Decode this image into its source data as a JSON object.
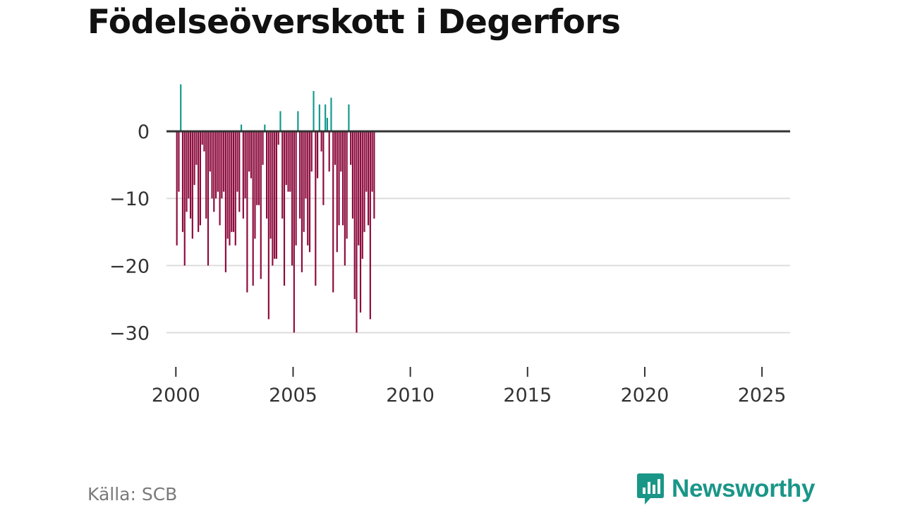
{
  "title": "Födelseöverskott i Degerfors",
  "source": "Källa: SCB",
  "brand": {
    "name": "Newsworthy",
    "icon": "bar-chart-speech-bubble-icon"
  },
  "colors": {
    "positive": "#11988c",
    "negative": "#8c0a3c",
    "zero_line": "#333333",
    "grid": "#dddddd",
    "brand": "#1a9688"
  },
  "chart_data": {
    "type": "bar",
    "title": "Födelseöverskott i Degerfors",
    "xlabel": "",
    "ylabel": "",
    "x_start": 2000,
    "months_per_bar": 1,
    "xlim": [
      1999.6,
      2026.2
    ],
    "ylim": [
      -33,
      8
    ],
    "yticks": [
      0,
      -10,
      -20,
      -30
    ],
    "ytick_labels": [
      "0",
      "−10",
      "−20",
      "−30"
    ],
    "xticks": [
      2000,
      2005,
      2010,
      2015,
      2020,
      2025
    ],
    "xtick_labels": [
      "2000",
      "2005",
      "2010",
      "2015",
      "2020",
      "2025"
    ],
    "grid": true,
    "values": [
      -17,
      -9,
      7,
      -15,
      -20,
      -12,
      -10,
      -13,
      -16,
      -8,
      -5,
      -15,
      -14,
      -2,
      -3,
      -13,
      -20,
      -6,
      -10,
      -12,
      -10,
      -9,
      -14,
      -10,
      -9,
      -21,
      -16,
      -17,
      -15,
      -15,
      -17,
      -9,
      -12,
      1,
      -13,
      -10,
      -24,
      -6,
      -7,
      -23,
      -16,
      -11,
      -11,
      -22,
      -5,
      1,
      -13,
      -28,
      -16,
      -20,
      -19,
      -19,
      -2,
      3,
      -13,
      -23,
      -8,
      -9,
      -9,
      -20,
      -30,
      -17,
      3,
      -13,
      -21,
      -15,
      -10,
      -17,
      -18,
      -6,
      6,
      -23,
      -7,
      4,
      -3,
      -11,
      4,
      2,
      -6,
      5,
      -24,
      -5,
      -18,
      -14,
      -6,
      -14,
      -20,
      -16,
      4,
      -5,
      -13,
      -25,
      -30,
      -17,
      -27,
      -19,
      -15,
      -9,
      -14,
      -28,
      -9,
      -13
    ]
  }
}
